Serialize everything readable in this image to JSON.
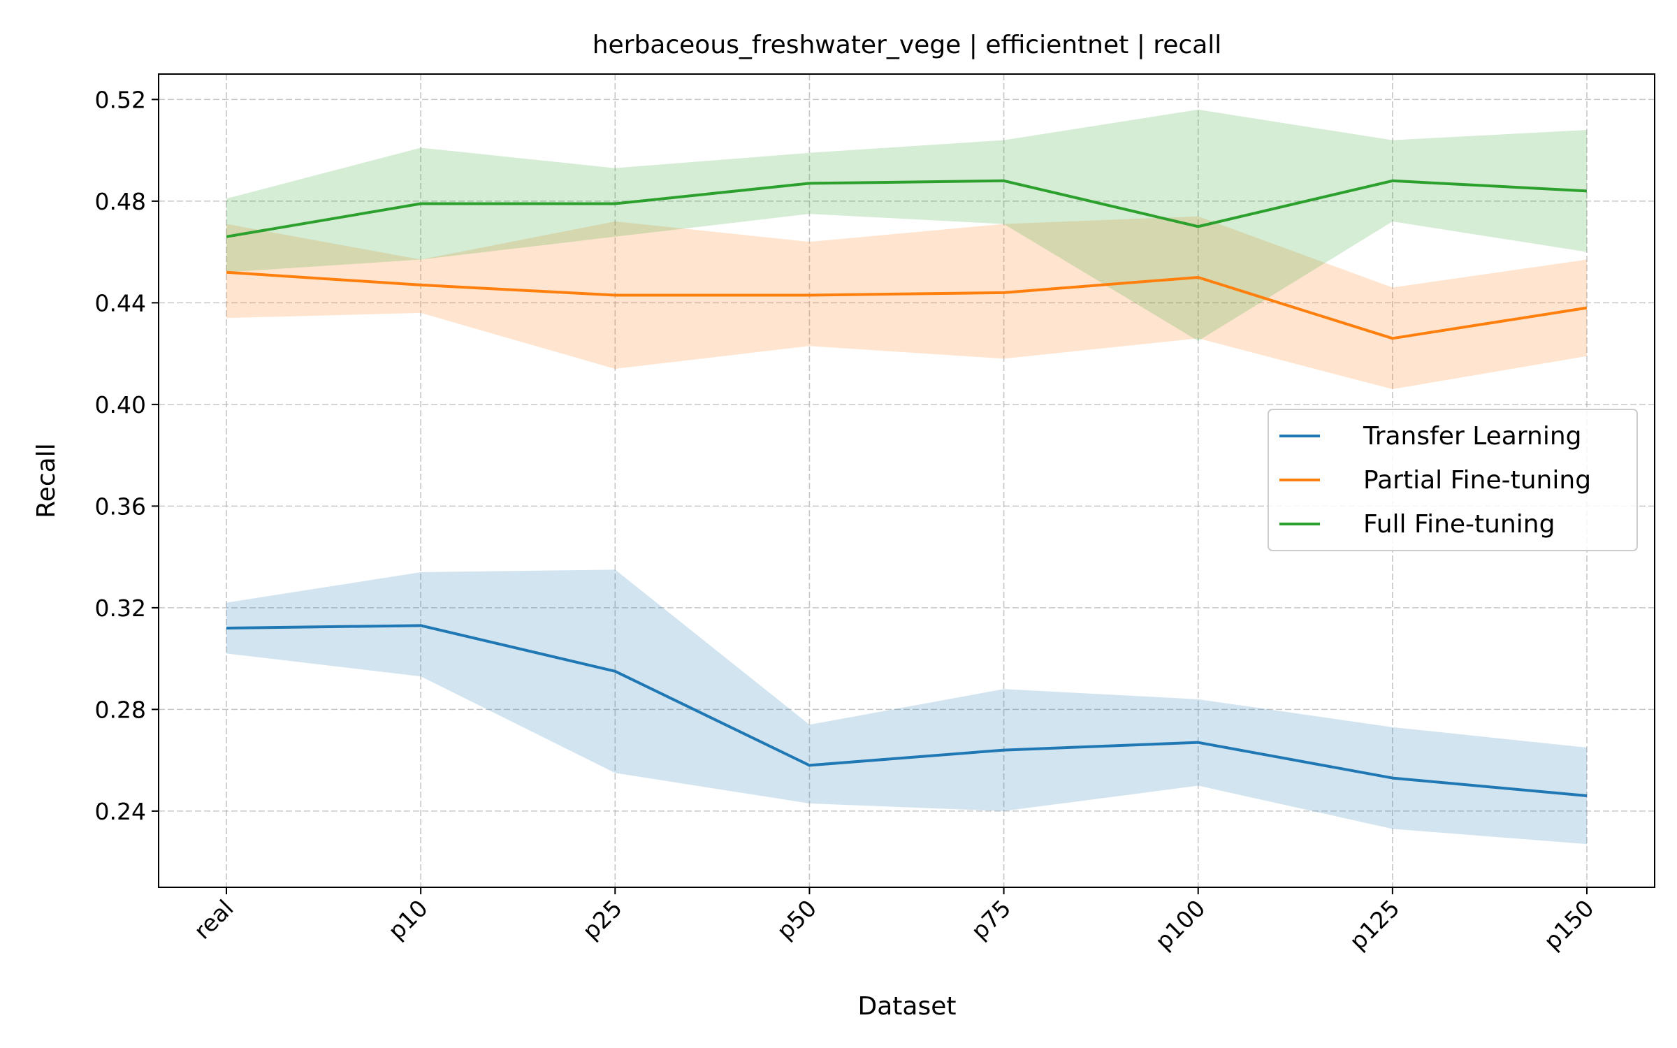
{
  "chart_data": {
    "type": "line",
    "title": "herbaceous_freshwater_vege | efficientnet | recall",
    "xlabel": "Dataset",
    "ylabel": "Recall",
    "categories": [
      "real",
      "p10",
      "p25",
      "p50",
      "p75",
      "p100",
      "p125",
      "p150"
    ],
    "ylim": [
      0.21,
      0.53
    ],
    "yticks": [
      0.24,
      0.28,
      0.32,
      0.36,
      0.4,
      0.44,
      0.48,
      0.52
    ],
    "yticklabels": [
      "0.24",
      "0.28",
      "0.32",
      "0.36",
      "0.40",
      "0.44",
      "0.48",
      "0.52"
    ],
    "grid": true,
    "legend_position": "center-right",
    "series": [
      {
        "name": "Transfer Learning",
        "color": "#1f77b4",
        "values": [
          0.312,
          0.313,
          0.295,
          0.258,
          0.264,
          0.267,
          0.253,
          0.246
        ],
        "lower": [
          0.302,
          0.293,
          0.255,
          0.243,
          0.24,
          0.25,
          0.233,
          0.227
        ],
        "upper": [
          0.322,
          0.334,
          0.335,
          0.274,
          0.288,
          0.284,
          0.273,
          0.265
        ]
      },
      {
        "name": "Partial Fine-tuning",
        "color": "#ff7f0e",
        "values": [
          0.452,
          0.447,
          0.443,
          0.443,
          0.444,
          0.45,
          0.426,
          0.438
        ],
        "lower": [
          0.434,
          0.436,
          0.414,
          0.423,
          0.418,
          0.426,
          0.406,
          0.419
        ],
        "upper": [
          0.471,
          0.457,
          0.472,
          0.464,
          0.471,
          0.474,
          0.446,
          0.457
        ]
      },
      {
        "name": "Full Fine-tuning",
        "color": "#2ca02c",
        "values": [
          0.466,
          0.479,
          0.479,
          0.487,
          0.488,
          0.47,
          0.488,
          0.484
        ],
        "lower": [
          0.452,
          0.457,
          0.466,
          0.475,
          0.471,
          0.425,
          0.472,
          0.46
        ],
        "upper": [
          0.481,
          0.501,
          0.493,
          0.499,
          0.504,
          0.516,
          0.504,
          0.508
        ]
      }
    ]
  }
}
